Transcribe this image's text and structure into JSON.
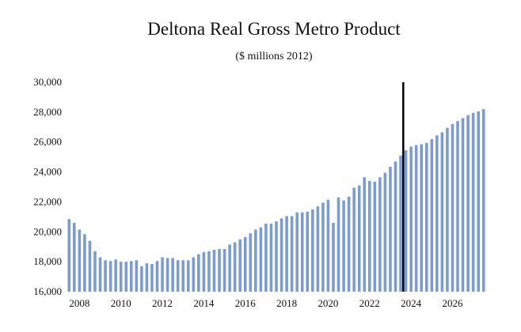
{
  "chart_data": {
    "type": "bar",
    "title": "Deltona Real Gross Metro Product",
    "subtitle": "($ millions 2012)",
    "xlabel": "",
    "ylabel": "",
    "ylim": [
      16000,
      30000
    ],
    "yticks": [
      "16,000",
      "18,000",
      "20,000",
      "22,000",
      "24,000",
      "26,000",
      "28,000",
      "30,000"
    ],
    "xticks": [
      "2008",
      "2010",
      "2012",
      "2014",
      "2016",
      "2018",
      "2020",
      "2022",
      "2024",
      "2026"
    ],
    "grid": false,
    "bar_color": "#7b9bd4",
    "marker_color": "#000000",
    "forecast_divider_after_quarter": "2023 Q3",
    "quarters": [
      "2007 Q3",
      "2007 Q4",
      "2008 Q1",
      "2008 Q2",
      "2008 Q3",
      "2008 Q4",
      "2009 Q1",
      "2009 Q2",
      "2009 Q3",
      "2009 Q4",
      "2010 Q1",
      "2010 Q2",
      "2010 Q3",
      "2010 Q4",
      "2011 Q1",
      "2011 Q2",
      "2011 Q3",
      "2011 Q4",
      "2012 Q1",
      "2012 Q2",
      "2012 Q3",
      "2012 Q4",
      "2013 Q1",
      "2013 Q2",
      "2013 Q3",
      "2013 Q4",
      "2014 Q1",
      "2014 Q2",
      "2014 Q3",
      "2014 Q4",
      "2015 Q1",
      "2015 Q2",
      "2015 Q3",
      "2015 Q4",
      "2016 Q1",
      "2016 Q2",
      "2016 Q3",
      "2016 Q4",
      "2017 Q1",
      "2017 Q2",
      "2017 Q3",
      "2017 Q4",
      "2018 Q1",
      "2018 Q2",
      "2018 Q3",
      "2018 Q4",
      "2019 Q1",
      "2019 Q2",
      "2019 Q3",
      "2019 Q4",
      "2020 Q1",
      "2020 Q2",
      "2020 Q3",
      "2020 Q4",
      "2021 Q1",
      "2021 Q2",
      "2021 Q3",
      "2021 Q4",
      "2022 Q1",
      "2022 Q2",
      "2022 Q3",
      "2022 Q4",
      "2023 Q1",
      "2023 Q2",
      "2023 Q3",
      "2023 Q4",
      "2024 Q1",
      "2024 Q2",
      "2024 Q3",
      "2024 Q4",
      "2025 Q1",
      "2025 Q2",
      "2025 Q3",
      "2025 Q4",
      "2026 Q1",
      "2026 Q2",
      "2026 Q3",
      "2026 Q4",
      "2027 Q1",
      "2027 Q2",
      "2027 Q3"
    ],
    "values": [
      20850,
      20600,
      20150,
      19850,
      19400,
      18700,
      18300,
      18100,
      18050,
      18150,
      18000,
      18000,
      18050,
      18100,
      17700,
      17900,
      17850,
      18050,
      18300,
      18250,
      18250,
      18100,
      18100,
      18100,
      18300,
      18500,
      18650,
      18700,
      18800,
      18850,
      18850,
      19150,
      19300,
      19500,
      19650,
      19900,
      20150,
      20300,
      20550,
      20550,
      20700,
      20900,
      21050,
      21050,
      21300,
      21300,
      21350,
      21500,
      21700,
      21950,
      22150,
      20600,
      22300,
      22100,
      22350,
      22950,
      23100,
      23650,
      23400,
      23350,
      23650,
      23950,
      24350,
      24700,
      25100,
      25450,
      25700,
      25800,
      25850,
      25950,
      26200,
      26450,
      26650,
      26950,
      27200,
      27400,
      27600,
      27800,
      27950,
      28050,
      28200
    ]
  }
}
